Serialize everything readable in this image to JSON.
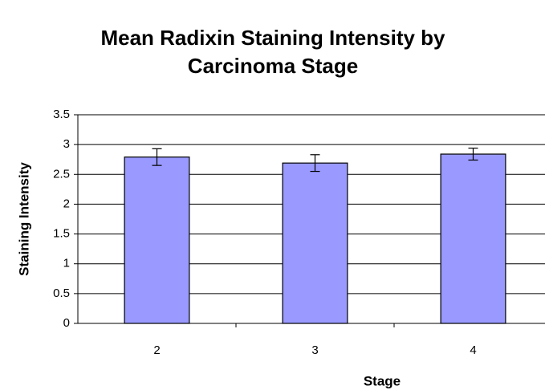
{
  "chart_data": {
    "type": "bar",
    "title": "Mean Radixin Staining Intensity by Carcinoma Stage",
    "x_label": "Stage",
    "y_label": "Staining Intensity",
    "categories": [
      "2",
      "3",
      "4"
    ],
    "values": [
      2.79,
      2.69,
      2.84
    ],
    "errors": [
      0.14,
      0.14,
      0.1
    ],
    "color": "#9999ff",
    "ylim": [
      0,
      3.5
    ],
    "yticks": [
      0,
      0.5,
      1,
      1.5,
      2,
      2.5,
      3,
      3.5
    ],
    "grid": true
  }
}
